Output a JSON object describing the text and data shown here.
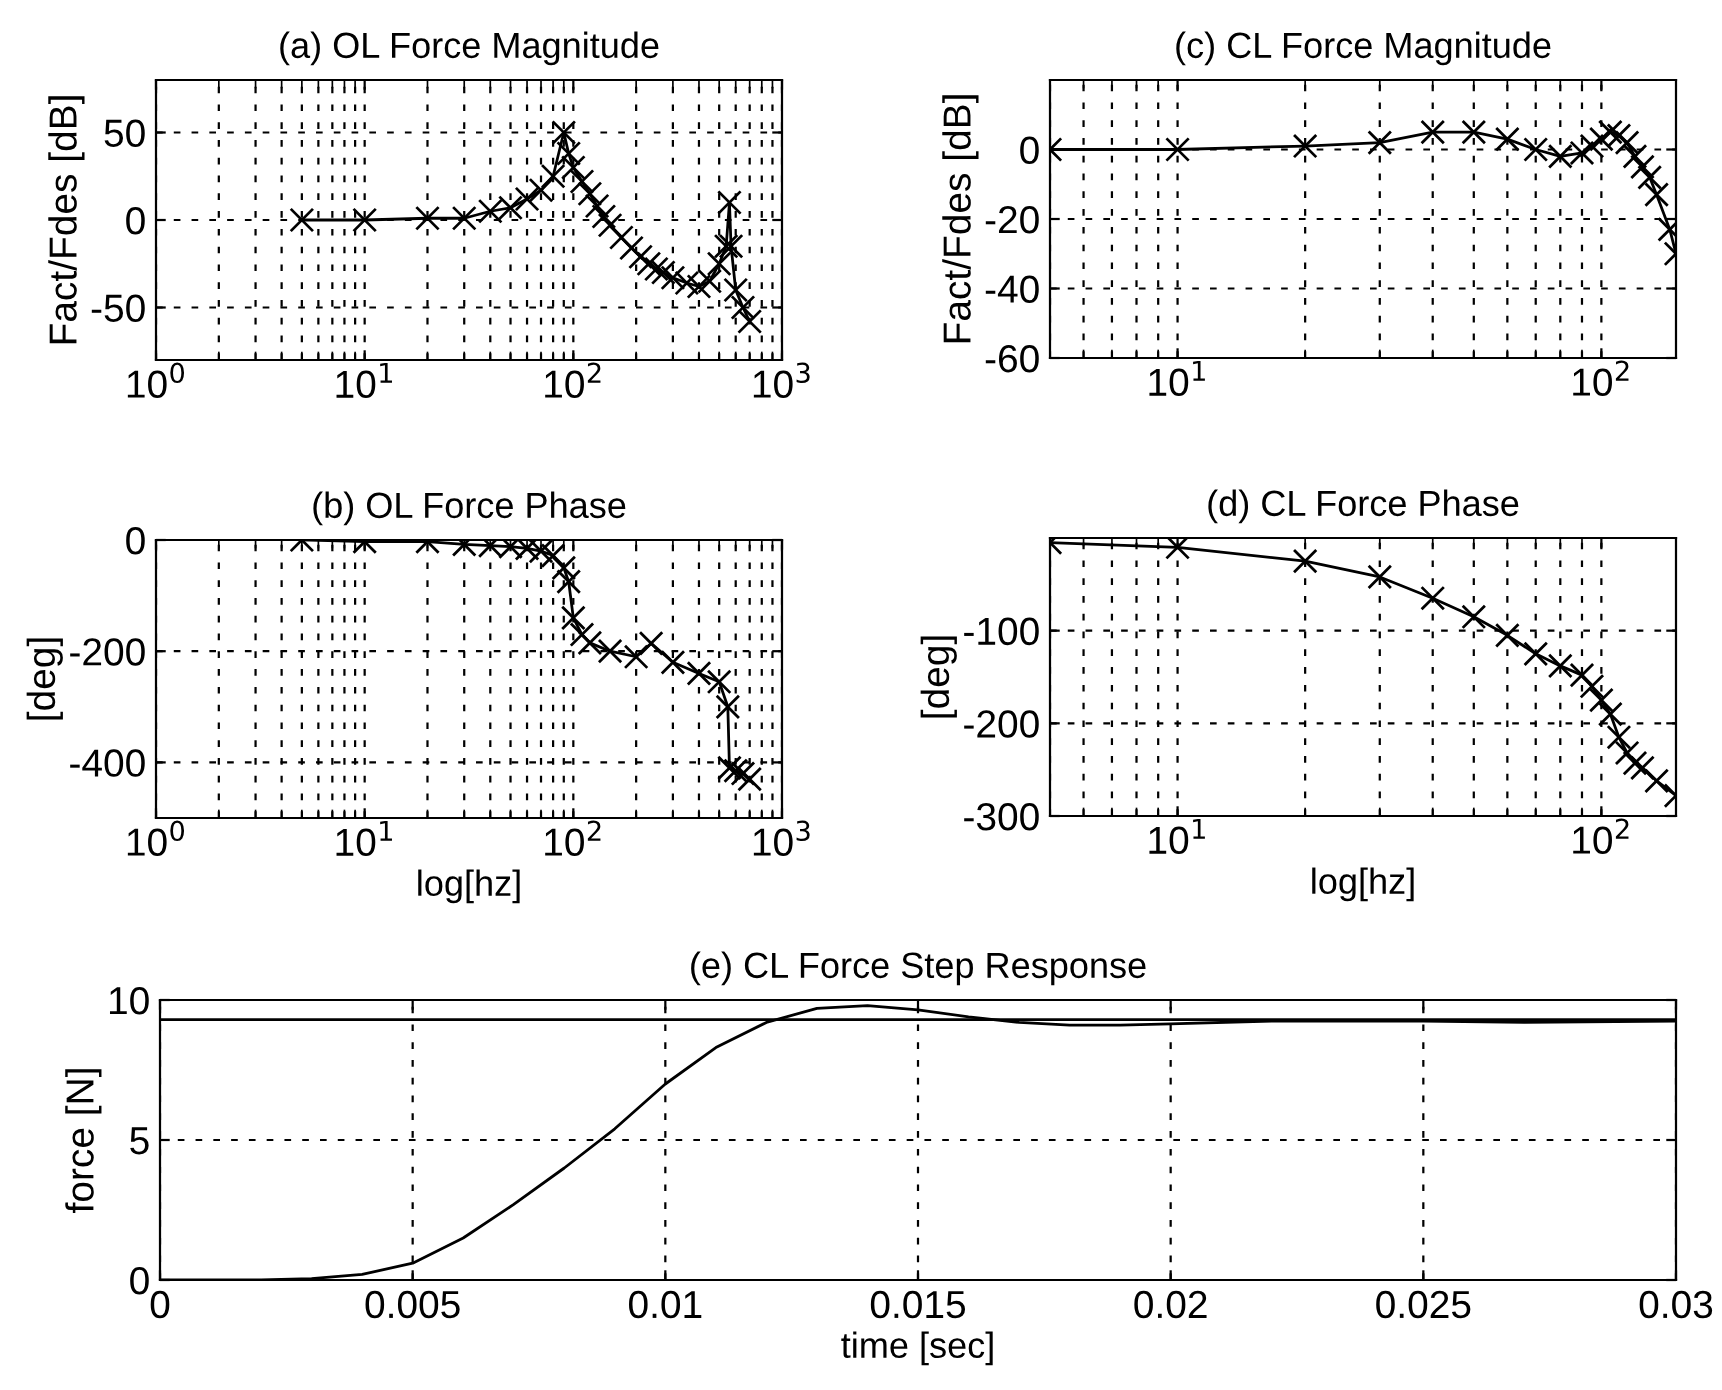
{
  "chart_data": [
    {
      "type": "line",
      "title": "(a) OL Force Magnitude",
      "ylabel": "Fact/Fdes [dB]",
      "log": "x",
      "grid": true,
      "marker": "cross",
      "line_style": "solid",
      "xlim": [
        1,
        1000
      ],
      "xticks": [
        {
          "value": 1,
          "label": "10$^{0}$"
        },
        {
          "value": 10,
          "label": "10$^{1}$"
        },
        {
          "value": 100,
          "label": "10$^{2}$"
        },
        {
          "value": 1000,
          "label": "10$^{3}$"
        }
      ],
      "ylim": [
        -80,
        80
      ],
      "yticks": [
        -50,
        0,
        50
      ],
      "series": [
        {
          "color": "#000000",
          "x": [
            5,
            10,
            20,
            30,
            40,
            50,
            60,
            70,
            80,
            90,
            95,
            100,
            110,
            120,
            130,
            140,
            150,
            170,
            190,
            210,
            230,
            250,
            270,
            300,
            350,
            400,
            450,
            500,
            540,
            560,
            570,
            600,
            650,
            700
          ],
          "values": [
            0,
            0,
            1,
            1,
            5,
            7,
            12,
            17,
            25,
            50,
            38,
            30,
            22,
            15,
            8,
            2,
            -3,
            -10,
            -16,
            -21,
            -25,
            -28,
            -30,
            -33,
            -36,
            -38,
            -35,
            -25,
            -15,
            10,
            -15,
            -40,
            -50,
            -58
          ]
        }
      ]
    },
    {
      "type": "line",
      "title": "(c) CL Force Magnitude",
      "ylabel": "Fact/Fdes [dB]",
      "log": "x",
      "grid": true,
      "marker": "cross",
      "line_style": "solid",
      "xlim": [
        5,
        150
      ],
      "xticks": [
        {
          "value": 10,
          "label": "10$^{1}$"
        },
        {
          "value": 100,
          "label": "10$^{2}$"
        }
      ],
      "ylim": [
        -60,
        20
      ],
      "yticks": [
        -60,
        -40,
        -20,
        0
      ],
      "series": [
        {
          "color": "#000000",
          "x": [
            5,
            10,
            20,
            30,
            40,
            50,
            60,
            70,
            80,
            90,
            95,
            100,
            105,
            110,
            115,
            120,
            125,
            130,
            135,
            145,
            150
          ],
          "values": [
            0,
            0,
            1,
            2,
            5,
            5,
            3,
            0,
            -2,
            -1,
            1,
            3,
            5,
            4,
            2,
            -2,
            -5,
            -8,
            -13,
            -23,
            -30
          ]
        }
      ]
    },
    {
      "type": "line",
      "title": "(b) OL Force Phase",
      "ylabel": "[deg]",
      "xlabel": "log[hz]",
      "log": "x",
      "grid": true,
      "marker": "cross",
      "line_style": "solid",
      "xlim": [
        1,
        1000
      ],
      "xticks": [
        {
          "value": 1,
          "label": "10$^{0}$"
        },
        {
          "value": 10,
          "label": "10$^{1}$"
        },
        {
          "value": 100,
          "label": "10$^{2}$"
        },
        {
          "value": 1000,
          "label": "10$^{3}$"
        }
      ],
      "ylim": [
        -500,
        0
      ],
      "yticks": [
        -400,
        -200,
        0
      ],
      "series": [
        {
          "color": "#000000",
          "x": [
            5,
            10,
            20,
            30,
            40,
            50,
            60,
            70,
            80,
            90,
            95,
            100,
            110,
            120,
            150,
            200,
            236,
            300,
            400,
            500,
            550,
            560,
            600,
            650,
            700
          ],
          "values": [
            0,
            -3,
            -3,
            -8,
            -10,
            -12,
            -15,
            -20,
            -28,
            -50,
            -75,
            -140,
            -170,
            -185,
            -200,
            -210,
            -186,
            -220,
            -240,
            -255,
            -300,
            -410,
            -415,
            -420,
            -430
          ]
        }
      ]
    },
    {
      "type": "line",
      "title": "(d) CL Force Phase",
      "ylabel": "[deg]",
      "xlabel": "log[hz]",
      "log": "x",
      "grid": true,
      "marker": "cross",
      "line_style": "solid",
      "xlim": [
        5,
        150
      ],
      "xticks": [
        {
          "value": 10,
          "label": "10$^{1}$"
        },
        {
          "value": 100,
          "label": "10$^{2}$"
        }
      ],
      "ylim": [
        -300,
        0
      ],
      "yticks": [
        -300,
        -200,
        -100
      ],
      "series": [
        {
          "color": "#000000",
          "x": [
            5,
            10,
            20,
            30,
            40,
            50,
            60,
            70,
            80,
            90,
            95,
            100,
            105,
            110,
            115,
            120,
            125,
            135,
            150
          ],
          "values": [
            -5,
            -10,
            -25,
            -42,
            -65,
            -85,
            -105,
            -125,
            -138,
            -148,
            -160,
            -175,
            -190,
            -215,
            -232,
            -243,
            -248,
            -262,
            -278
          ]
        }
      ]
    },
    {
      "type": "line",
      "title": "(e) CL Force Step Response",
      "ylabel": "force [N]",
      "xlabel": "time [sec]",
      "grid": true,
      "line_style": "solid",
      "xlim": [
        0,
        0.03
      ],
      "xticks": [
        0,
        0.005,
        0.01,
        0.015,
        0.02,
        0.025,
        0.03
      ],
      "ylim": [
        0,
        10
      ],
      "yticks": [
        0,
        5,
        10
      ],
      "ref_lines": [
        {
          "axis": "y",
          "value": 9.3,
          "color": "#000000",
          "line_style": "solid"
        }
      ],
      "series": [
        {
          "color": "#000000",
          "x": [
            0,
            0.002,
            0.003,
            0.004,
            0.005,
            0.006,
            0.007,
            0.008,
            0.009,
            0.01,
            0.011,
            0.012,
            0.013,
            0.014,
            0.015,
            0.016,
            0.017,
            0.018,
            0.019,
            0.02,
            0.022,
            0.025,
            0.027,
            0.03
          ],
          "values": [
            0,
            0,
            0.05,
            0.2,
            0.6,
            1.5,
            2.7,
            4,
            5.4,
            7,
            8.3,
            9.2,
            9.7,
            9.8,
            9.65,
            9.4,
            9.2,
            9.1,
            9.1,
            9.15,
            9.25,
            9.25,
            9.2,
            9.25
          ]
        }
      ]
    }
  ]
}
